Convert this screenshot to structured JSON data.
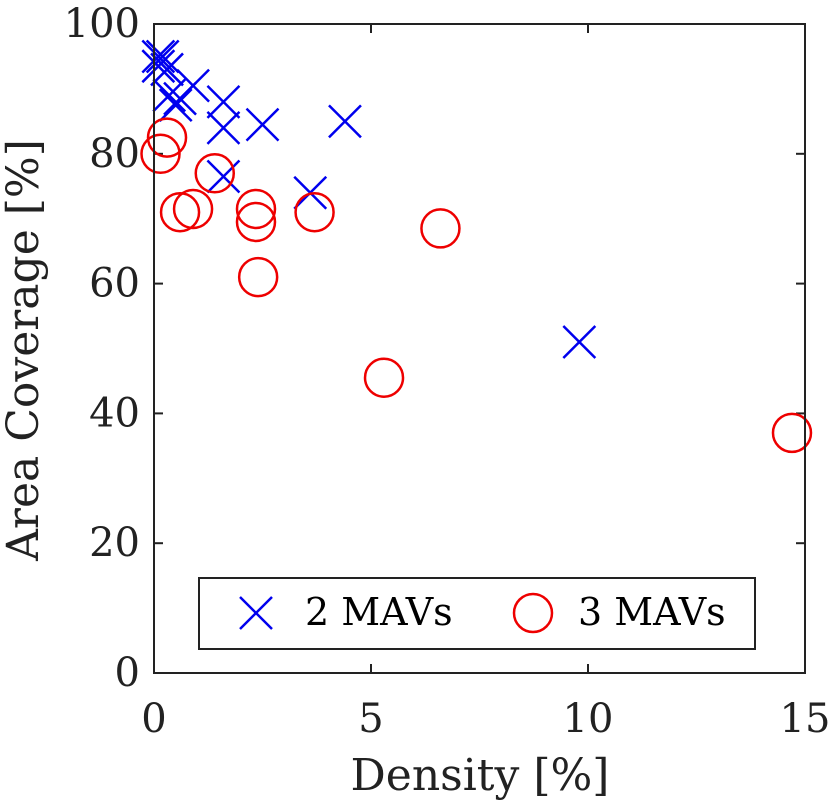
{
  "chart_data": {
    "type": "scatter",
    "title": "",
    "xlabel": "Density [%]",
    "ylabel": "Area Coverage [%]",
    "xlim": [
      0,
      15
    ],
    "ylim": [
      0,
      100
    ],
    "xticks": [
      0,
      5,
      10,
      15
    ],
    "yticks": [
      0,
      20,
      40,
      60,
      80,
      100
    ],
    "x_tick_labels": [
      "0",
      "5",
      "10",
      "15"
    ],
    "y_tick_labels": [
      "0",
      "20",
      "40",
      "60",
      "80",
      "100"
    ],
    "grid": false,
    "box": true,
    "legend": {
      "placement": "bottom",
      "orientation": "horizontal"
    },
    "series": [
      {
        "name": "2 MAVs",
        "marker": "x",
        "color": "#0000ee",
        "points": [
          {
            "x": 0.1,
            "y": 95
          },
          {
            "x": 0.1,
            "y": 93.5
          },
          {
            "x": 0.2,
            "y": 95
          },
          {
            "x": 0.3,
            "y": 93
          },
          {
            "x": 0.35,
            "y": 89
          },
          {
            "x": 0.5,
            "y": 87.5
          },
          {
            "x": 0.6,
            "y": 88.5
          },
          {
            "x": 0.9,
            "y": 90.5
          },
          {
            "x": 1.6,
            "y": 88
          },
          {
            "x": 1.6,
            "y": 84
          },
          {
            "x": 1.6,
            "y": 76.5
          },
          {
            "x": 2.5,
            "y": 84.5
          },
          {
            "x": 3.6,
            "y": 74
          },
          {
            "x": 4.4,
            "y": 85
          },
          {
            "x": 9.8,
            "y": 51
          }
        ]
      },
      {
        "name": "3 MAVs",
        "marker": "o",
        "color": "#ee0000",
        "points": [
          {
            "x": 0.3,
            "y": 82.5
          },
          {
            "x": 0.15,
            "y": 80
          },
          {
            "x": 1.4,
            "y": 77
          },
          {
            "x": 0.6,
            "y": 71
          },
          {
            "x": 0.9,
            "y": 71.5
          },
          {
            "x": 2.35,
            "y": 71.5
          },
          {
            "x": 2.35,
            "y": 69.5
          },
          {
            "x": 3.7,
            "y": 71
          },
          {
            "x": 2.4,
            "y": 61
          },
          {
            "x": 6.6,
            "y": 68.5
          },
          {
            "x": 5.3,
            "y": 45.5
          },
          {
            "x": 14.7,
            "y": 37
          }
        ]
      }
    ]
  }
}
